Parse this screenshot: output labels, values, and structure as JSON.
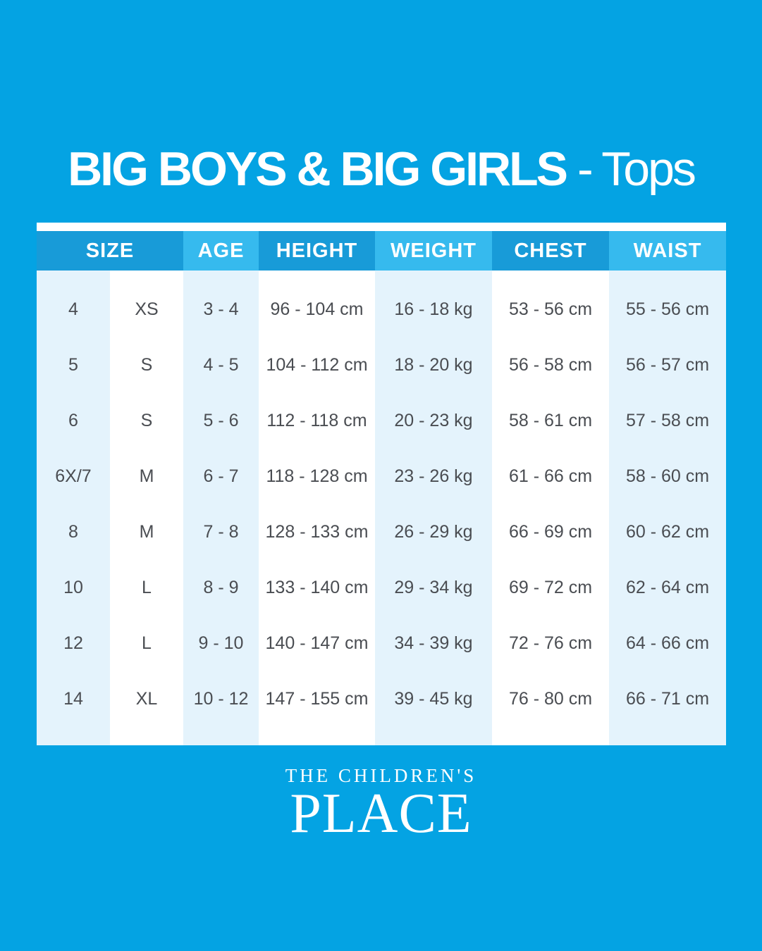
{
  "title": {
    "main": "BIG BOYS & BIG GIRLS",
    "sub": "- Tops"
  },
  "headers": [
    "SIZE",
    "AGE",
    "HEIGHT",
    "WEIGHT",
    "CHEST",
    "WAIST"
  ],
  "columns": {
    "size_num": [
      "4",
      "5",
      "6",
      "6X/7",
      "8",
      "10",
      "12",
      "14"
    ],
    "size_letter": [
      "XS",
      "S",
      "S",
      "M",
      "M",
      "L",
      "L",
      "XL"
    ],
    "age": [
      "3 - 4",
      "4 - 5",
      "5 - 6",
      "6 - 7",
      "7 - 8",
      "8 - 9",
      "9 - 10",
      "10 - 12"
    ],
    "height": [
      "96 - 104 cm",
      "104 - 112 cm",
      "112 - 118 cm",
      "118 - 128 cm",
      "128 - 133 cm",
      "133 - 140 cm",
      "140 - 147 cm",
      "147 - 155 cm"
    ],
    "weight": [
      "16 - 18 kg",
      "18 - 20 kg",
      "20 - 23 kg",
      "23 - 26 kg",
      "26 - 29 kg",
      "29 - 34 kg",
      "34 - 39 kg",
      "39 - 45 kg"
    ],
    "chest": [
      "53 - 56 cm",
      "56 - 58 cm",
      "58 - 61 cm",
      "61 - 66 cm",
      "66 - 69 cm",
      "69 - 72 cm",
      "72 - 76 cm",
      "76 - 80 cm"
    ],
    "waist": [
      "55 - 56 cm",
      "56 - 57 cm",
      "57 - 58 cm",
      "58 - 60 cm",
      "60 - 62 cm",
      "62 - 64 cm",
      "64 - 66 cm",
      "66 - 71 cm"
    ]
  },
  "logo": {
    "top": "THE CHILDREN'S",
    "bottom": "PLACE"
  },
  "colors": {
    "background": "#04a3e3",
    "header_dark": "#189bd8",
    "header_light": "#36baee",
    "cell_light": "#e4f3fc",
    "text": "#4a4d52"
  }
}
